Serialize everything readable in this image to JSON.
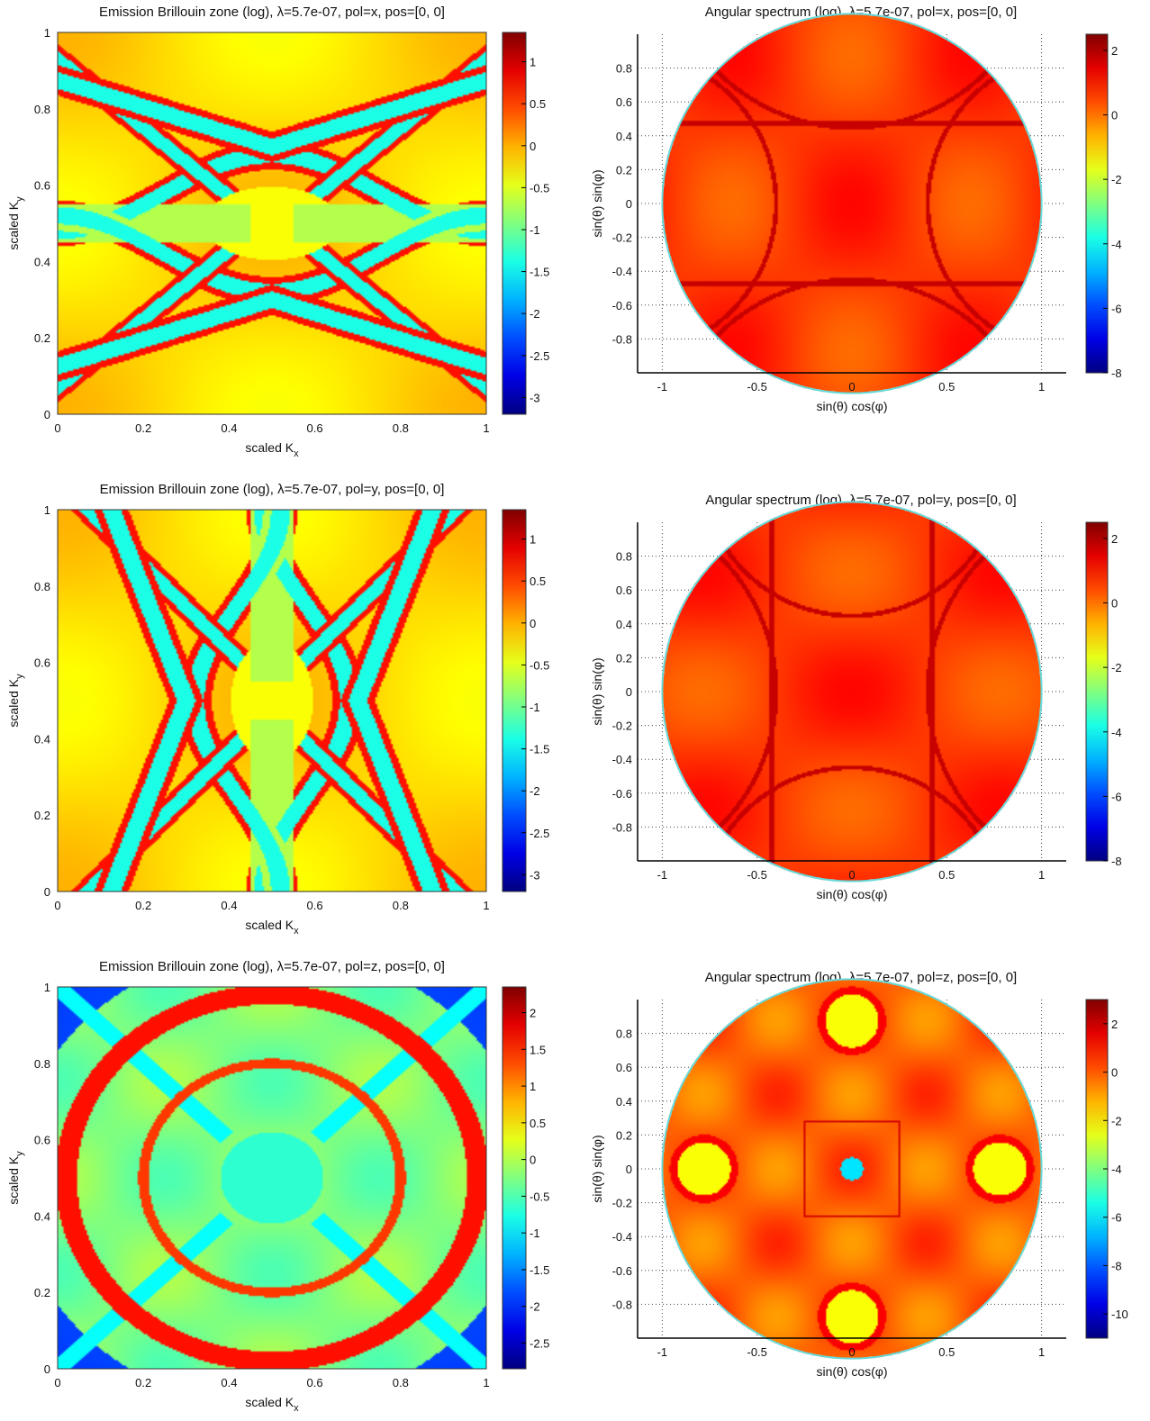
{
  "figure": {
    "rows": 3
  },
  "chart_data": [
    {
      "type": "heatmap",
      "title": "Emission Brillouin zone (log), λ=5.7e-07, pol=x, pos=[0, 0]",
      "xlabel_main": "scaled K",
      "xlabel_sub": "x",
      "ylabel_main": "scaled K",
      "ylabel_sub": "y",
      "xlim": [
        0,
        1
      ],
      "ylim": [
        0,
        1
      ],
      "xticks": [
        "0",
        "0.2",
        "0.4",
        "0.6",
        "0.8",
        "1"
      ],
      "yticks": [
        "0",
        "0.2",
        "0.4",
        "0.6",
        "0.8",
        "1"
      ],
      "colorbar": {
        "range": [
          -3.2,
          1.35
        ],
        "ticks": [
          "1",
          "0.5",
          "0",
          "-0.5",
          "-1",
          "-1.5",
          "-2",
          "-2.5",
          "-3"
        ]
      },
      "pattern": "pol_x_bz",
      "colormap": "jet"
    },
    {
      "type": "heatmap",
      "title": "Angular spectrum (log), λ=5.7e-07, pol=x, pos=[0, 0]",
      "xlabel": "sin(θ) cos(φ)",
      "ylabel": "sin(θ) sin(φ)",
      "xlim": [
        -1,
        1
      ],
      "ylim": [
        -1,
        1
      ],
      "xticks": [
        "-1",
        "-0.5",
        "0",
        "0.5",
        "1"
      ],
      "yticks": [
        "0.8",
        "0.6",
        "0.4",
        "0.2",
        "0",
        "-0.2",
        "-0.4",
        "-0.6",
        "-0.8"
      ],
      "colorbar": {
        "range": [
          -8,
          2.5
        ],
        "ticks": [
          "2",
          "0",
          "-2",
          "-4",
          "-6",
          "-8"
        ]
      },
      "pattern": "pol_x_angular",
      "grid": true,
      "colormap": "jet"
    },
    {
      "type": "heatmap",
      "title": "Emission Brillouin zone (log), λ=5.7e-07, pol=y, pos=[0, 0]",
      "xlabel_main": "scaled K",
      "xlabel_sub": "x",
      "ylabel_main": "scaled K",
      "ylabel_sub": "y",
      "xlim": [
        0,
        1
      ],
      "ylim": [
        0,
        1
      ],
      "xticks": [
        "0",
        "0.2",
        "0.4",
        "0.6",
        "0.8",
        "1"
      ],
      "yticks": [
        "0",
        "0.2",
        "0.4",
        "0.6",
        "0.8",
        "1"
      ],
      "colorbar": {
        "range": [
          -3.2,
          1.35
        ],
        "ticks": [
          "1",
          "0.5",
          "0",
          "-0.5",
          "-1",
          "-1.5",
          "-2",
          "-2.5",
          "-3"
        ]
      },
      "pattern": "pol_y_bz",
      "colormap": "jet"
    },
    {
      "type": "heatmap",
      "title": "Angular spectrum (log), λ=5.7e-07, pol=y, pos=[0, 0]",
      "xlabel": "sin(θ) cos(φ)",
      "ylabel": "sin(θ) sin(φ)",
      "xlim": [
        -1,
        1
      ],
      "ylim": [
        -1,
        1
      ],
      "xticks": [
        "-1",
        "-0.5",
        "0",
        "0.5",
        "1"
      ],
      "yticks": [
        "0.8",
        "0.6",
        "0.4",
        "0.2",
        "0",
        "-0.2",
        "-0.4",
        "-0.6",
        "-0.8"
      ],
      "colorbar": {
        "range": [
          -8,
          2.5
        ],
        "ticks": [
          "2",
          "0",
          "-2",
          "-4",
          "-6",
          "-8"
        ]
      },
      "pattern": "pol_y_angular",
      "grid": true,
      "colormap": "jet"
    },
    {
      "type": "heatmap",
      "title": "Emission Brillouin zone (log), λ=5.7e-07, pol=z, pos=[0, 0]",
      "xlabel_main": "scaled K",
      "xlabel_sub": "x",
      "ylabel_main": "scaled K",
      "ylabel_sub": "y",
      "xlim": [
        0,
        1
      ],
      "ylim": [
        0,
        1
      ],
      "xticks": [
        "0",
        "0.2",
        "0.4",
        "0.6",
        "0.8",
        "1"
      ],
      "yticks": [
        "0",
        "0.2",
        "0.4",
        "0.6",
        "0.8",
        "1"
      ],
      "colorbar": {
        "range": [
          -2.85,
          2.35
        ],
        "ticks": [
          "2",
          "1.5",
          "1",
          "0.5",
          "0",
          "-0.5",
          "-1",
          "-1.5",
          "-2",
          "-2.5"
        ]
      },
      "pattern": "pol_z_bz",
      "colormap": "jet"
    },
    {
      "type": "heatmap",
      "title": "Angular spectrum (log), λ=5.7e-07, pol=z, pos=[0, 0]",
      "xlabel": "sin(θ) cos(φ)",
      "ylabel": "sin(θ) sin(φ)",
      "xlim": [
        -1,
        1
      ],
      "ylim": [
        -1,
        1
      ],
      "xticks": [
        "-1",
        "-0.5",
        "0",
        "0.5",
        "1"
      ],
      "yticks": [
        "0.8",
        "0.6",
        "0.4",
        "0.2",
        "0",
        "-0.2",
        "-0.4",
        "-0.6",
        "-0.8"
      ],
      "colorbar": {
        "range": [
          -11,
          3
        ],
        "ticks": [
          "2",
          "0",
          "-2",
          "-4",
          "-6",
          "-8",
          "-10"
        ]
      },
      "pattern": "pol_z_angular",
      "grid": true,
      "colormap": "jet"
    }
  ]
}
